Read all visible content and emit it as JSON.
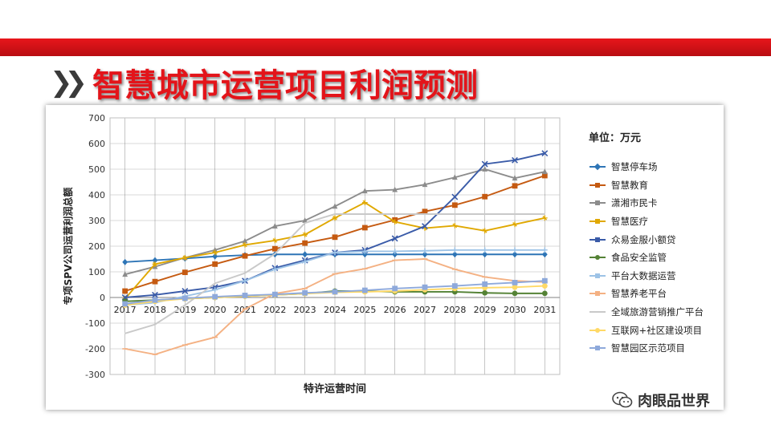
{
  "slide": {
    "title": "智慧城市运营项目利润预测",
    "banner_color": "#d4101a"
  },
  "watermark": {
    "icon": "wechat-icon",
    "text": "肉眼品世界"
  },
  "chart_data": {
    "type": "line",
    "unit_label": "单位：万元",
    "xlabel": "特许运营时间",
    "ylabel": "专项SPV公司运营利润总额",
    "ylim": [
      -300,
      700
    ],
    "yticks": [
      700,
      600,
      500,
      400,
      300,
      200,
      100,
      0,
      -100,
      -200,
      -300
    ],
    "categories": [
      "2017",
      "2018",
      "2019",
      "2020",
      "2021",
      "2022",
      "2023",
      "2024",
      "2025",
      "2026",
      "2027",
      "2028",
      "2029",
      "2030",
      "2031"
    ],
    "series": [
      {
        "name": "智慧停车场",
        "color": "#2e75b6",
        "marker": "diamond",
        "values": [
          138,
          145,
          152,
          160,
          165,
          168,
          168,
          168,
          168,
          168,
          168,
          168,
          168,
          168,
          168
        ]
      },
      {
        "name": "智慧教育",
        "color": "#c55a11",
        "marker": "square",
        "values": [
          25,
          62,
          98,
          130,
          162,
          190,
          212,
          235,
          272,
          302,
          335,
          360,
          393,
          435,
          475
        ]
      },
      {
        "name": "潇湘市民卡",
        "color": "#8c8c8c",
        "marker": "triangle",
        "values": [
          90,
          120,
          155,
          185,
          220,
          278,
          300,
          355,
          415,
          420,
          440,
          468,
          500,
          465,
          490
        ]
      },
      {
        "name": "智慧医疗",
        "color": "#e0a800",
        "marker": "star",
        "values": [
          -5,
          130,
          155,
          175,
          205,
          222,
          245,
          310,
          370,
          295,
          270,
          280,
          260,
          285,
          310
        ]
      },
      {
        "name": "众易金服小额贷",
        "color": "#3a5ba8",
        "marker": "x",
        "values": [
          0,
          10,
          25,
          40,
          65,
          115,
          145,
          175,
          185,
          230,
          278,
          392,
          520,
          535,
          562
        ]
      },
      {
        "name": "食品安全监管",
        "color": "#548235",
        "marker": "circle",
        "values": [
          -15,
          -10,
          -5,
          0,
          5,
          10,
          15,
          25,
          25,
          22,
          22,
          22,
          18,
          16,
          16
        ]
      },
      {
        "name": "平台大数据运营",
        "color": "#9dc3e6",
        "marker": "plus",
        "values": [
          -30,
          -20,
          5,
          30,
          65,
          110,
          140,
          175,
          180,
          180,
          182,
          185,
          185,
          185,
          185
        ]
      },
      {
        "name": "智慧养老平台",
        "color": "#f4b183",
        "marker": "dash",
        "values": [
          -200,
          -222,
          -185,
          -155,
          -45,
          15,
          35,
          92,
          112,
          145,
          150,
          110,
          80,
          65,
          60
        ]
      },
      {
        "name": "全域旅游营销推广平台",
        "color": "#c9c9c9",
        "marker": "none",
        "values": [
          -140,
          -105,
          -30,
          55,
          95,
          170,
          290,
          325,
          325,
          325,
          325,
          325,
          325,
          325,
          325
        ]
      },
      {
        "name": "互联网+社区建设项目",
        "color": "#ffd966",
        "marker": "circle",
        "values": [
          -30,
          -15,
          -5,
          0,
          5,
          10,
          15,
          20,
          22,
          25,
          30,
          35,
          38,
          40,
          45
        ]
      },
      {
        "name": "智慧园区示范项目",
        "color": "#8ea9db",
        "marker": "square",
        "values": [
          -25,
          -10,
          -3,
          3,
          8,
          12,
          18,
          22,
          28,
          35,
          40,
          45,
          52,
          58,
          65
        ]
      }
    ]
  }
}
